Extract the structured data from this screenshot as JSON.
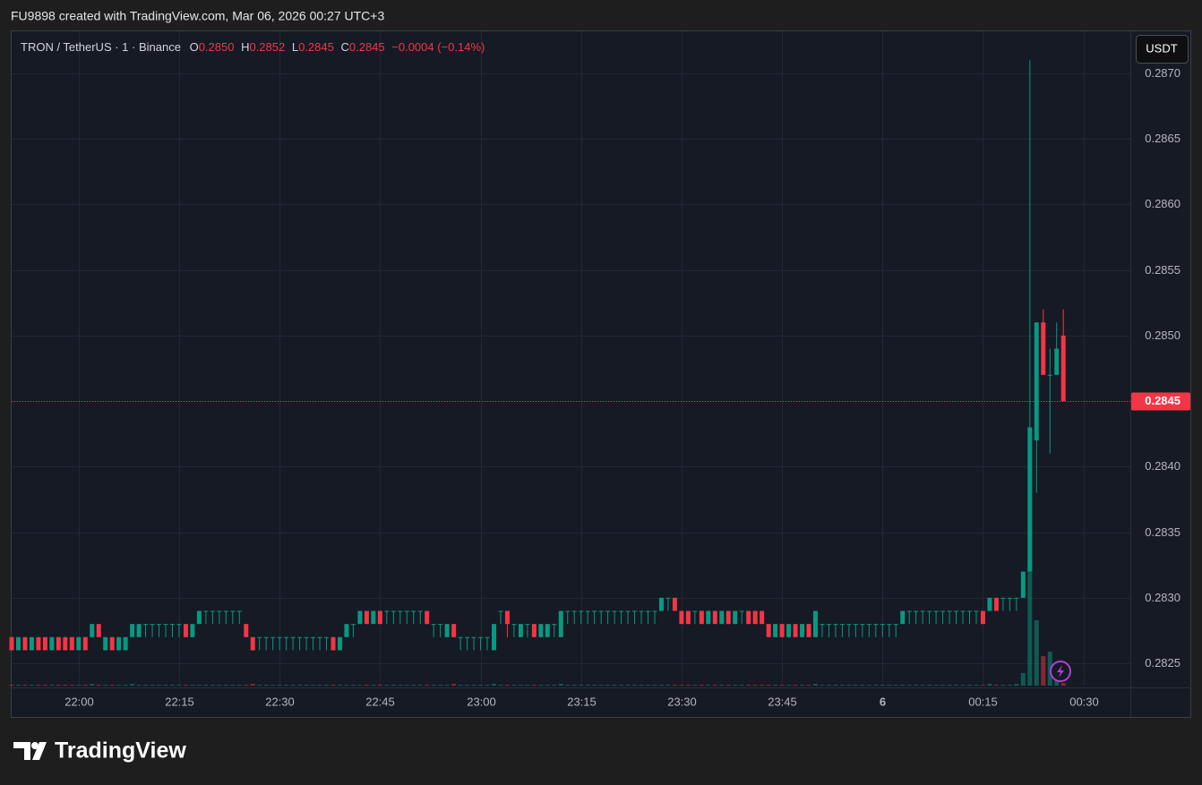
{
  "header": "FU9898 created with TradingView.com, Mar 06, 2026 00:27 UTC+3",
  "currency_button": "USDT",
  "logo": "TradingView",
  "legend": {
    "symbol": "TRON / TetherUS · 1 · Binance",
    "fields": [
      {
        "key": "O",
        "value": "0.2850"
      },
      {
        "key": "H",
        "value": "0.2852"
      },
      {
        "key": "L",
        "value": "0.2845"
      },
      {
        "key": "C",
        "value": "0.2845"
      }
    ],
    "change": "−0.0004 (−0.14%)"
  },
  "chart_data": {
    "type": "candlestick",
    "up_color": "#089981",
    "down_color": "#f23645",
    "grid": true,
    "xlim": [
      "21:50",
      "00:37"
    ],
    "xticks": [
      "22:00",
      "22:15",
      "22:30",
      "22:45",
      "23:00",
      "23:15",
      "23:30",
      "23:45",
      {
        "value": "00:00",
        "label": "6"
      },
      "00:15",
      "00:30"
    ],
    "ylim": [
      0.28233,
      0.28732
    ],
    "yticks": [
      0.2825,
      {
        "value": 0.283,
        "label": "0.2830"
      },
      0.2835,
      {
        "value": 0.284,
        "label": "0.2840"
      },
      0.2845,
      {
        "value": 0.285,
        "label": "0.2850"
      },
      0.2855,
      {
        "value": 0.286,
        "label": "0.2860"
      },
      0.2865,
      {
        "value": 0.287,
        "label": "0.2870"
      }
    ],
    "last_price": 0.2845,
    "candles": [
      [
        "21:50",
        0.2827,
        0.2827,
        0.2826,
        0.2826,
        1
      ],
      [
        "21:51",
        0.2826,
        0.2827,
        0.2826,
        0.2827,
        1
      ],
      [
        "21:52",
        0.2827,
        0.2827,
        0.2826,
        0.2826,
        1
      ],
      [
        "21:53",
        0.2826,
        0.2827,
        0.2826,
        0.2827,
        1
      ],
      [
        "21:54",
        0.2827,
        0.2827,
        0.2826,
        0.2826,
        1
      ],
      [
        "21:55",
        0.2827,
        0.2827,
        0.2826,
        0.2826,
        1
      ],
      [
        "21:56",
        0.2826,
        0.2827,
        0.2826,
        0.2827,
        1
      ],
      [
        "21:57",
        0.2827,
        0.2827,
        0.2826,
        0.2826,
        1
      ],
      [
        "21:58",
        0.2827,
        0.2827,
        0.2826,
        0.2826,
        1
      ],
      [
        "21:59",
        0.2827,
        0.2827,
        0.2826,
        0.2826,
        1
      ],
      [
        "22:00",
        0.2826,
        0.2827,
        0.2826,
        0.2827,
        1
      ],
      [
        "22:01",
        0.2827,
        0.2827,
        0.2826,
        0.2826,
        1
      ],
      [
        "22:02",
        0.2827,
        0.2828,
        0.2827,
        0.2828,
        2
      ],
      [
        "22:03",
        0.2828,
        0.2828,
        0.2827,
        0.2827,
        1
      ],
      [
        "22:04",
        0.2826,
        0.2827,
        0.2826,
        0.2827,
        1
      ],
      [
        "22:05",
        0.2827,
        0.2827,
        0.2826,
        0.2826,
        1
      ],
      [
        "22:06",
        0.2826,
        0.2827,
        0.2826,
        0.2827,
        1
      ],
      [
        "22:07",
        0.2826,
        0.2827,
        0.2826,
        0.2827,
        1
      ],
      [
        "22:08",
        0.2827,
        0.2828,
        0.2827,
        0.2828,
        2
      ],
      [
        "22:09",
        0.2827,
        0.2828,
        0.2827,
        0.2828,
        1
      ],
      [
        "22:10",
        0.2828,
        0.2828,
        0.2827,
        0.2828,
        1
      ],
      [
        "22:11",
        0.2828,
        0.2828,
        0.2827,
        0.2828,
        1
      ],
      [
        "22:12",
        0.2828,
        0.2828,
        0.2827,
        0.2828,
        1
      ],
      [
        "22:13",
        0.2828,
        0.2828,
        0.2827,
        0.2828,
        1
      ],
      [
        "22:14",
        0.2828,
        0.2828,
        0.2827,
        0.2828,
        1
      ],
      [
        "22:15",
        0.2828,
        0.2828,
        0.2827,
        0.2828,
        1
      ],
      [
        "22:16",
        0.2828,
        0.2828,
        0.2827,
        0.2827,
        1
      ],
      [
        "22:17",
        0.2827,
        0.2828,
        0.2827,
        0.2828,
        1
      ],
      [
        "22:18",
        0.2828,
        0.2829,
        0.2828,
        0.2829,
        1
      ],
      [
        "22:19",
        0.2829,
        0.2829,
        0.2828,
        0.2829,
        1
      ],
      [
        "22:20",
        0.2829,
        0.2829,
        0.2828,
        0.2829,
        1
      ],
      [
        "22:21",
        0.2829,
        0.2829,
        0.2828,
        0.2829,
        1
      ],
      [
        "22:22",
        0.2829,
        0.2829,
        0.2828,
        0.2829,
        1
      ],
      [
        "22:23",
        0.2829,
        0.2829,
        0.2828,
        0.2829,
        1
      ],
      [
        "22:24",
        0.2829,
        0.2829,
        0.2828,
        0.2829,
        1
      ],
      [
        "22:25",
        0.2828,
        0.2828,
        0.2827,
        0.2827,
        1
      ],
      [
        "22:26",
        0.2827,
        0.2827,
        0.2826,
        0.2826,
        2
      ],
      [
        "22:27",
        0.2827,
        0.2827,
        0.2826,
        0.2827,
        1
      ],
      [
        "22:28",
        0.2827,
        0.2827,
        0.2826,
        0.2827,
        1
      ],
      [
        "22:29",
        0.2827,
        0.2827,
        0.2826,
        0.2827,
        1
      ],
      [
        "22:30",
        0.2827,
        0.2827,
        0.2826,
        0.2827,
        1
      ],
      [
        "22:31",
        0.2827,
        0.2827,
        0.2826,
        0.2827,
        1
      ],
      [
        "22:32",
        0.2827,
        0.2827,
        0.2826,
        0.2827,
        1
      ],
      [
        "22:33",
        0.2827,
        0.2827,
        0.2826,
        0.2827,
        1
      ],
      [
        "22:34",
        0.2827,
        0.2827,
        0.2826,
        0.2827,
        1
      ],
      [
        "22:35",
        0.2827,
        0.2827,
        0.2826,
        0.2827,
        1
      ],
      [
        "22:36",
        0.2827,
        0.2827,
        0.2826,
        0.2827,
        1
      ],
      [
        "22:37",
        0.2827,
        0.2827,
        0.2826,
        0.2827,
        1
      ],
      [
        "22:38",
        0.2827,
        0.2827,
        0.2826,
        0.2826,
        1
      ],
      [
        "22:39",
        0.2826,
        0.2827,
        0.2826,
        0.2827,
        1
      ],
      [
        "22:40",
        0.2827,
        0.2828,
        0.2827,
        0.2828,
        1
      ],
      [
        "22:41",
        0.2828,
        0.2828,
        0.2827,
        0.2828,
        1
      ],
      [
        "22:42",
        0.2828,
        0.2829,
        0.2828,
        0.2829,
        1
      ],
      [
        "22:43",
        0.2829,
        0.2829,
        0.2828,
        0.2828,
        1
      ],
      [
        "22:44",
        0.2828,
        0.2829,
        0.2828,
        0.2829,
        1
      ],
      [
        "22:45",
        0.2829,
        0.2829,
        0.2828,
        0.2828,
        1
      ],
      [
        "22:46",
        0.2829,
        0.2829,
        0.2828,
        0.2829,
        1
      ],
      [
        "22:47",
        0.2829,
        0.2829,
        0.2828,
        0.2829,
        1
      ],
      [
        "22:48",
        0.2829,
        0.2829,
        0.2828,
        0.2829,
        1
      ],
      [
        "22:49",
        0.2829,
        0.2829,
        0.2828,
        0.2829,
        1
      ],
      [
        "22:50",
        0.2829,
        0.2829,
        0.2828,
        0.2829,
        1
      ],
      [
        "22:51",
        0.2829,
        0.2829,
        0.2828,
        0.2829,
        1
      ],
      [
        "22:52",
        0.2829,
        0.2829,
        0.2828,
        0.2828,
        1
      ],
      [
        "22:53",
        0.2828,
        0.2828,
        0.2827,
        0.2828,
        1
      ],
      [
        "22:54",
        0.2828,
        0.2828,
        0.2827,
        0.2828,
        1
      ],
      [
        "22:55",
        0.2827,
        0.2828,
        0.2827,
        0.2828,
        1
      ],
      [
        "22:56",
        0.2828,
        0.2828,
        0.2827,
        0.2827,
        2
      ],
      [
        "22:57",
        0.2827,
        0.2827,
        0.2826,
        0.2827,
        1
      ],
      [
        "22:58",
        0.2827,
        0.2827,
        0.2826,
        0.2827,
        1
      ],
      [
        "22:59",
        0.2827,
        0.2827,
        0.2826,
        0.2827,
        1
      ],
      [
        "23:00",
        0.2827,
        0.2827,
        0.2826,
        0.2827,
        1
      ],
      [
        "23:01",
        0.2827,
        0.2827,
        0.2826,
        0.2827,
        1
      ],
      [
        "23:02",
        0.2826,
        0.2828,
        0.2826,
        0.2828,
        2
      ],
      [
        "23:03",
        0.2829,
        0.2829,
        0.2828,
        0.2829,
        1
      ],
      [
        "23:04",
        0.2829,
        0.2829,
        0.2827,
        0.2828,
        1
      ],
      [
        "23:05",
        0.2828,
        0.2828,
        0.2827,
        0.2828,
        1
      ],
      [
        "23:06",
        0.2827,
        0.2828,
        0.2827,
        0.2828,
        1
      ],
      [
        "23:07",
        0.2828,
        0.2828,
        0.2827,
        0.2828,
        1
      ],
      [
        "23:08",
        0.2828,
        0.2828,
        0.2827,
        0.2827,
        1
      ],
      [
        "23:09",
        0.2827,
        0.2828,
        0.2827,
        0.2828,
        1
      ],
      [
        "23:10",
        0.2827,
        0.2828,
        0.2827,
        0.2828,
        1
      ],
      [
        "23:11",
        0.2828,
        0.2828,
        0.2827,
        0.2828,
        1
      ],
      [
        "23:12",
        0.2827,
        0.2829,
        0.2827,
        0.2829,
        2
      ],
      [
        "23:13",
        0.2829,
        0.2829,
        0.2828,
        0.2829,
        1
      ],
      [
        "23:14",
        0.2829,
        0.2829,
        0.2828,
        0.2829,
        1
      ],
      [
        "23:15",
        0.2829,
        0.2829,
        0.2828,
        0.2829,
        1
      ],
      [
        "23:16",
        0.2829,
        0.2829,
        0.2828,
        0.2829,
        1
      ],
      [
        "23:17",
        0.2829,
        0.2829,
        0.2828,
        0.2829,
        1
      ],
      [
        "23:18",
        0.2829,
        0.2829,
        0.2828,
        0.2829,
        1
      ],
      [
        "23:19",
        0.2829,
        0.2829,
        0.2828,
        0.2829,
        1
      ],
      [
        "23:20",
        0.2829,
        0.2829,
        0.2828,
        0.2829,
        1
      ],
      [
        "23:21",
        0.2829,
        0.2829,
        0.2828,
        0.2829,
        1
      ],
      [
        "23:22",
        0.2829,
        0.2829,
        0.2828,
        0.2829,
        1
      ],
      [
        "23:23",
        0.2829,
        0.2829,
        0.2828,
        0.2829,
        1
      ],
      [
        "23:24",
        0.2829,
        0.2829,
        0.2828,
        0.2829,
        1
      ],
      [
        "23:25",
        0.2829,
        0.2829,
        0.2828,
        0.2829,
        1
      ],
      [
        "23:26",
        0.2829,
        0.2829,
        0.2828,
        0.2829,
        1
      ],
      [
        "23:27",
        0.2829,
        0.283,
        0.2829,
        0.283,
        1
      ],
      [
        "23:28",
        0.283,
        0.283,
        0.2829,
        0.283,
        1
      ],
      [
        "23:29",
        0.283,
        0.283,
        0.2829,
        0.2829,
        1
      ],
      [
        "23:30",
        0.2829,
        0.2829,
        0.2828,
        0.2828,
        1
      ],
      [
        "23:31",
        0.2829,
        0.2829,
        0.2828,
        0.2828,
        1
      ],
      [
        "23:32",
        0.2829,
        0.2829,
        0.2828,
        0.2829,
        1
      ],
      [
        "23:33",
        0.2829,
        0.2829,
        0.2828,
        0.2828,
        1
      ],
      [
        "23:34",
        0.2828,
        0.2829,
        0.2828,
        0.2829,
        1
      ],
      [
        "23:35",
        0.2829,
        0.2829,
        0.2828,
        0.2828,
        1
      ],
      [
        "23:36",
        0.2828,
        0.2829,
        0.2828,
        0.2829,
        1
      ],
      [
        "23:37",
        0.2829,
        0.2829,
        0.2828,
        0.2828,
        1
      ],
      [
        "23:38",
        0.2828,
        0.2829,
        0.2828,
        0.2829,
        1
      ],
      [
        "23:39",
        0.2829,
        0.2829,
        0.2828,
        0.2829,
        1
      ],
      [
        "23:40",
        0.2829,
        0.2829,
        0.2828,
        0.2828,
        1
      ],
      [
        "23:41",
        0.2829,
        0.2829,
        0.2828,
        0.2828,
        1
      ],
      [
        "23:42",
        0.2829,
        0.2829,
        0.2828,
        0.2828,
        1
      ],
      [
        "23:43",
        0.2828,
        0.2828,
        0.2827,
        0.2827,
        1
      ],
      [
        "23:44",
        0.2827,
        0.2828,
        0.2827,
        0.2828,
        1
      ],
      [
        "23:45",
        0.2828,
        0.2828,
        0.2827,
        0.2827,
        1
      ],
      [
        "23:46",
        0.2827,
        0.2828,
        0.2827,
        0.2828,
        1
      ],
      [
        "23:47",
        0.2828,
        0.2828,
        0.2827,
        0.2827,
        1
      ],
      [
        "23:48",
        0.2827,
        0.2828,
        0.2827,
        0.2828,
        1
      ],
      [
        "23:49",
        0.2828,
        0.2828,
        0.2827,
        0.2827,
        1
      ],
      [
        "23:50",
        0.2827,
        0.2829,
        0.2827,
        0.2829,
        2
      ],
      [
        "23:51",
        0.2828,
        0.2828,
        0.2827,
        0.2828,
        1
      ],
      [
        "23:52",
        0.2828,
        0.2828,
        0.2827,
        0.2828,
        1
      ],
      [
        "23:53",
        0.2828,
        0.2828,
        0.2827,
        0.2828,
        1
      ],
      [
        "23:54",
        0.2828,
        0.2828,
        0.2827,
        0.2828,
        1
      ],
      [
        "23:55",
        0.2828,
        0.2828,
        0.2827,
        0.2828,
        1
      ],
      [
        "23:56",
        0.2828,
        0.2828,
        0.2827,
        0.2828,
        1
      ],
      [
        "23:57",
        0.2828,
        0.2828,
        0.2827,
        0.2828,
        1
      ],
      [
        "23:58",
        0.2828,
        0.2828,
        0.2827,
        0.2828,
        1
      ],
      [
        "23:59",
        0.2828,
        0.2828,
        0.2827,
        0.2828,
        1
      ],
      [
        "00:00",
        0.2828,
        0.2828,
        0.2827,
        0.2828,
        1
      ],
      [
        "00:01",
        0.2828,
        0.2828,
        0.2827,
        0.2828,
        1
      ],
      [
        "00:02",
        0.2828,
        0.2828,
        0.2827,
        0.2828,
        1
      ],
      [
        "00:03",
        0.2828,
        0.2829,
        0.2828,
        0.2829,
        1
      ],
      [
        "00:04",
        0.2829,
        0.2829,
        0.2828,
        0.2829,
        1
      ],
      [
        "00:05",
        0.2829,
        0.2829,
        0.2828,
        0.2829,
        1
      ],
      [
        "00:06",
        0.2829,
        0.2829,
        0.2828,
        0.2829,
        1
      ],
      [
        "00:07",
        0.2829,
        0.2829,
        0.2828,
        0.2829,
        1
      ],
      [
        "00:08",
        0.2829,
        0.2829,
        0.2828,
        0.2829,
        1
      ],
      [
        "00:09",
        0.2829,
        0.2829,
        0.2828,
        0.2829,
        1
      ],
      [
        "00:10",
        0.2829,
        0.2829,
        0.2828,
        0.2829,
        1
      ],
      [
        "00:11",
        0.2829,
        0.2829,
        0.2828,
        0.2829,
        1
      ],
      [
        "00:12",
        0.2829,
        0.2829,
        0.2828,
        0.2829,
        1
      ],
      [
        "00:13",
        0.2829,
        0.2829,
        0.2828,
        0.2829,
        1
      ],
      [
        "00:14",
        0.2829,
        0.2829,
        0.2828,
        0.2829,
        1
      ],
      [
        "00:15",
        0.2829,
        0.2829,
        0.2828,
        0.2828,
        1
      ],
      [
        "00:16",
        0.2829,
        0.283,
        0.2829,
        0.283,
        2
      ],
      [
        "00:17",
        0.283,
        0.283,
        0.2829,
        0.2829,
        1
      ],
      [
        "00:18",
        0.283,
        0.283,
        0.2829,
        0.283,
        1
      ],
      [
        "00:19",
        0.283,
        0.283,
        0.2829,
        0.283,
        1
      ],
      [
        "00:20",
        0.283,
        0.283,
        0.2829,
        0.283,
        2
      ],
      [
        "00:21",
        0.283,
        0.2832,
        0.283,
        0.2832,
        14
      ],
      [
        "00:22",
        0.2832,
        0.2871,
        0.2832,
        0.2843,
        138
      ],
      [
        "00:23",
        0.2842,
        0.2851,
        0.2838,
        0.2851,
        73
      ],
      [
        "00:24",
        0.2851,
        0.2852,
        0.2847,
        0.2847,
        33
      ],
      [
        "00:25",
        0.2847,
        0.2849,
        0.2841,
        0.2847,
        38
      ],
      [
        "00:26",
        0.2847,
        0.2851,
        0.2847,
        0.2849,
        6
      ],
      [
        "00:27",
        0.285,
        0.2852,
        0.2845,
        0.2845,
        3
      ]
    ]
  }
}
